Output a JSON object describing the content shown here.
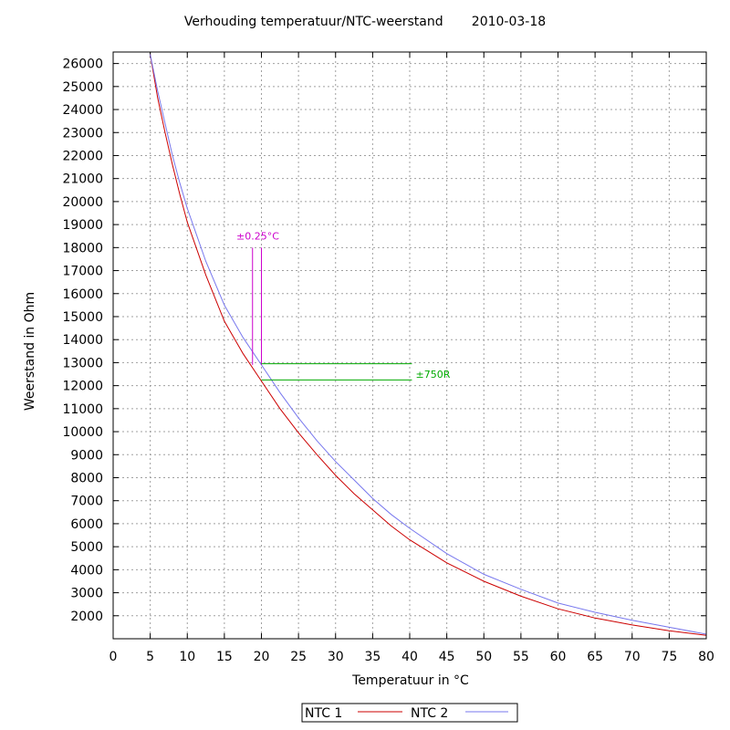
{
  "chart_data": {
    "type": "line",
    "title": "Verhouding temperatuur/NTC-weerstand",
    "date": "2010-03-18",
    "xlabel": "Temperatuur in °C",
    "ylabel": "Weerstand in Ohm",
    "xlim": [
      0,
      80
    ],
    "ylim": [
      1000,
      26500
    ],
    "xticks": [
      0,
      5,
      10,
      15,
      20,
      25,
      30,
      35,
      40,
      45,
      50,
      55,
      60,
      65,
      70,
      75,
      80
    ],
    "yticks": [
      2000,
      3000,
      4000,
      5000,
      6000,
      7000,
      8000,
      9000,
      10000,
      11000,
      12000,
      13000,
      14000,
      15000,
      16000,
      17000,
      18000,
      19000,
      20000,
      21000,
      22000,
      23000,
      24000,
      25000,
      26000
    ],
    "grid": true,
    "legend_position": "bottom-center",
    "series": [
      {
        "name": "NTC 1",
        "color": "#cc0000",
        "x": [
          5,
          6,
          7,
          8,
          9,
          10,
          12.5,
          15,
          17.5,
          20,
          22.5,
          25,
          27.5,
          30,
          32.5,
          35,
          37.5,
          40,
          45,
          50,
          55,
          60,
          65,
          70,
          75,
          80
        ],
        "y": [
          26400,
          24500,
          23000,
          21600,
          20300,
          19100,
          16800,
          14800,
          13400,
          12200,
          11000,
          9950,
          9000,
          8100,
          7300,
          6600,
          5900,
          5300,
          4300,
          3500,
          2850,
          2300,
          1900,
          1600,
          1350,
          1150
        ]
      },
      {
        "name": "NTC 2",
        "color": "#7777ee",
        "x": [
          5,
          6,
          7,
          8,
          9,
          10,
          12.5,
          15,
          17.5,
          20,
          22.5,
          25,
          27.5,
          30,
          32.5,
          35,
          37.5,
          40,
          45,
          50,
          55,
          60,
          65,
          70,
          75,
          80
        ],
        "y": [
          26400,
          24800,
          23400,
          22000,
          20800,
          19700,
          17400,
          15500,
          14100,
          12900,
          11700,
          10600,
          9600,
          8700,
          7900,
          7100,
          6400,
          5800,
          4700,
          3800,
          3150,
          2550,
          2150,
          1800,
          1500,
          1200
        ]
      }
    ],
    "annotations": [
      {
        "text": "±0.25°C",
        "color": "#cc00cc",
        "lines_x": [
          18.8,
          20.0
        ],
        "y_from": 12900,
        "y_to": 18000,
        "label_at": [
          19.5,
          18500
        ]
      },
      {
        "text": "±750R",
        "color": "#00aa00",
        "lines_y": [
          12950,
          12250
        ],
        "x_from": [
          20.0,
          20.0
        ],
        "x_to": 40.3,
        "label_at": [
          40.8,
          12500
        ]
      }
    ]
  }
}
